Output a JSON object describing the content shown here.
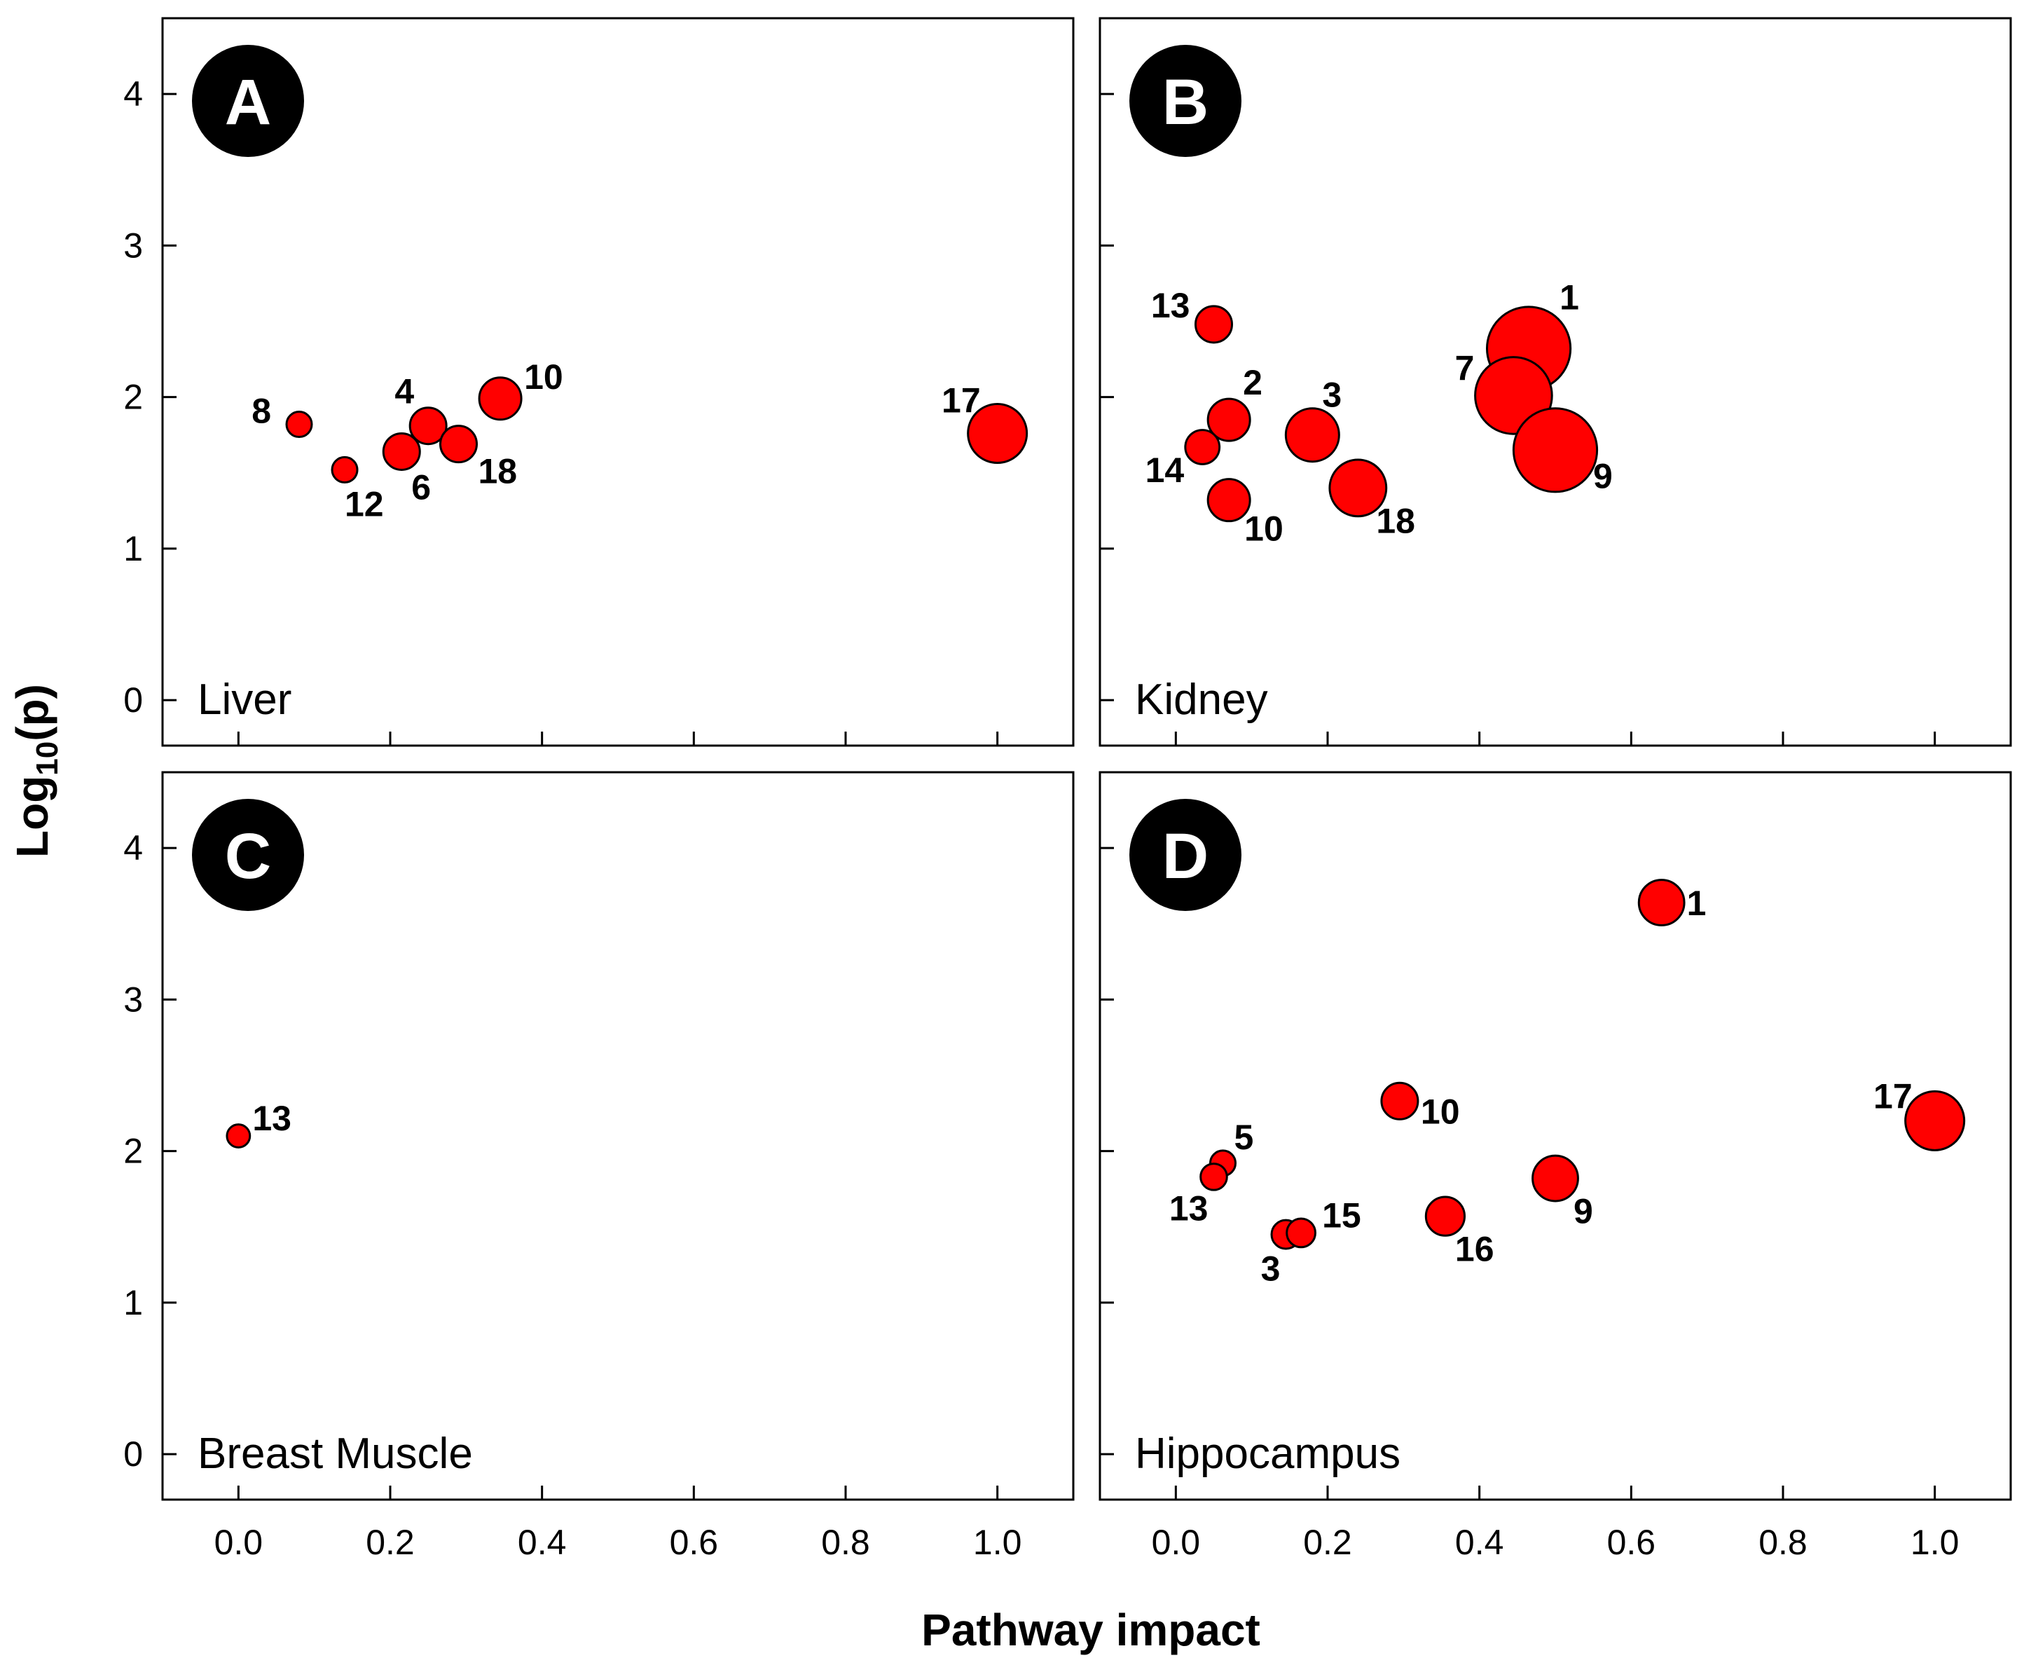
{
  "chart_data": {
    "type": "scatter",
    "xlabel": "Pathway impact",
    "ylabel_main": "Log",
    "ylabel_sub": "10",
    "ylabel_tail": "(p)",
    "xlim": [
      -0.1,
      1.1
    ],
    "ylim": [
      -0.3,
      4.5
    ],
    "xticks": [
      "0.0",
      "0.2",
      "0.4",
      "0.6",
      "0.8",
      "1.0"
    ],
    "yticks": [
      "0",
      "1",
      "2",
      "3",
      "4"
    ],
    "panels": [
      {
        "letter": "A",
        "tissue": "Liver",
        "points": [
          {
            "id": "8",
            "x": 0.08,
            "y": 1.82,
            "size": 1
          },
          {
            "id": "12",
            "x": 0.14,
            "y": 1.52,
            "size": 1
          },
          {
            "id": "6",
            "x": 0.215,
            "y": 1.64,
            "size": 2
          },
          {
            "id": "4",
            "x": 0.25,
            "y": 1.81,
            "size": 2
          },
          {
            "id": "18",
            "x": 0.29,
            "y": 1.69,
            "size": 2
          },
          {
            "id": "10",
            "x": 0.345,
            "y": 1.99,
            "size": 2.5
          },
          {
            "id": "17",
            "x": 1.0,
            "y": 1.76,
            "size": 4
          }
        ]
      },
      {
        "letter": "B",
        "tissue": "Kidney",
        "points": [
          {
            "id": "13",
            "x": 0.05,
            "y": 2.48,
            "size": 2
          },
          {
            "id": "2",
            "x": 0.07,
            "y": 1.85,
            "size": 2.5
          },
          {
            "id": "14",
            "x": 0.035,
            "y": 1.67,
            "size": 1.8
          },
          {
            "id": "10",
            "x": 0.07,
            "y": 1.32,
            "size": 2.5
          },
          {
            "id": "3",
            "x": 0.18,
            "y": 1.75,
            "size": 3.5
          },
          {
            "id": "18",
            "x": 0.24,
            "y": 1.4,
            "size": 3.8
          },
          {
            "id": "1",
            "x": 0.465,
            "y": 2.32,
            "size": 6.2
          },
          {
            "id": "7",
            "x": 0.445,
            "y": 2.01,
            "size": 5.6
          },
          {
            "id": "9",
            "x": 0.5,
            "y": 1.65,
            "size": 6.2
          }
        ]
      },
      {
        "letter": "C",
        "tissue": "Breast Muscle",
        "points": [
          {
            "id": "13",
            "x": 0.0,
            "y": 2.1,
            "size": 0.8
          }
        ]
      },
      {
        "letter": "D",
        "tissue": "Hippocampus",
        "points": [
          {
            "id": "1",
            "x": 0.64,
            "y": 3.64,
            "size": 2.8
          },
          {
            "id": "10",
            "x": 0.295,
            "y": 2.33,
            "size": 2
          },
          {
            "id": "5",
            "x": 0.062,
            "y": 1.92,
            "size": 1
          },
          {
            "id": "13",
            "x": 0.05,
            "y": 1.83,
            "size": 1.1
          },
          {
            "id": "3",
            "x": 0.145,
            "y": 1.45,
            "size": 1.3
          },
          {
            "id": "15",
            "x": 0.165,
            "y": 1.46,
            "size": 1.3
          },
          {
            "id": "16",
            "x": 0.355,
            "y": 1.57,
            "size": 2.2
          },
          {
            "id": "9",
            "x": 0.5,
            "y": 1.82,
            "size": 2.8
          },
          {
            "id": "17",
            "x": 1.0,
            "y": 2.2,
            "size": 4
          }
        ]
      }
    ]
  }
}
